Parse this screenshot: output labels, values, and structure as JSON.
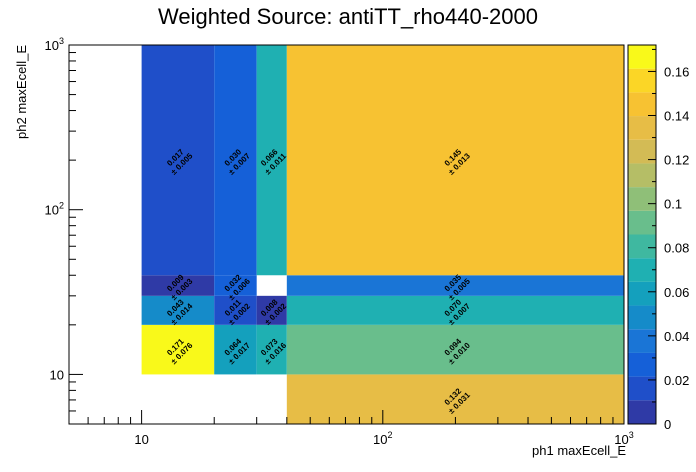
{
  "chart_data": {
    "type": "heatmap",
    "title": "Weighted Source: antiTT_rho440-2000",
    "xlabel": "ph1 maxEcell_E",
    "ylabel": "ph2 maxEcell_E",
    "x_scale": "log",
    "y_scale": "log",
    "xlim": [
      5,
      1000
    ],
    "ylim": [
      5,
      1000
    ],
    "x_edges": [
      10,
      20,
      30,
      40,
      1000
    ],
    "y_edges": [
      5,
      10,
      20,
      30,
      40,
      1000
    ],
    "x_ticks": [
      {
        "value": 10,
        "label": "10"
      },
      {
        "value": 100,
        "label": "10^2"
      },
      {
        "value": 1000,
        "label": "10^3"
      }
    ],
    "y_ticks": [
      {
        "value": 10,
        "label": "10"
      },
      {
        "value": 100,
        "label": "10^2"
      },
      {
        "value": 1000,
        "label": "10^3"
      }
    ],
    "z_range": [
      0,
      0.172
    ],
    "colorbar_ticks": [
      "0",
      "0.02",
      "0.04",
      "0.06",
      "0.08",
      "0.1",
      "0.12",
      "0.14",
      "0.16"
    ],
    "colorbar_tick_values": [
      0,
      0.02,
      0.04,
      0.06,
      0.08,
      0.1,
      0.12,
      0.14,
      0.16
    ],
    "grid": false,
    "cells": [
      {
        "xbin": 3,
        "ybin": 0,
        "value": 0.132,
        "value_label": "0.132",
        "error_label": "± 0.031"
      },
      {
        "xbin": 0,
        "ybin": 1,
        "value": 0.171,
        "value_label": "0.171",
        "error_label": "± 0.076"
      },
      {
        "xbin": 1,
        "ybin": 1,
        "value": 0.064,
        "value_label": "0.064",
        "error_label": "± 0.017"
      },
      {
        "xbin": 2,
        "ybin": 1,
        "value": 0.073,
        "value_label": "0.073",
        "error_label": "± 0.016"
      },
      {
        "xbin": 3,
        "ybin": 1,
        "value": 0.094,
        "value_label": "0.094",
        "error_label": "± 0.010"
      },
      {
        "xbin": 0,
        "ybin": 2,
        "value": 0.043,
        "value_label": "0.043",
        "error_label": "± 0.014"
      },
      {
        "xbin": 1,
        "ybin": 2,
        "value": 0.011,
        "value_label": "0.011",
        "error_label": "± 0.002"
      },
      {
        "xbin": 2,
        "ybin": 2,
        "value": 0.008,
        "value_label": "0.008",
        "error_label": "± 0.002"
      },
      {
        "xbin": 3,
        "ybin": 2,
        "value": 0.07,
        "value_label": "0.070",
        "error_label": "± 0.007"
      },
      {
        "xbin": 0,
        "ybin": 3,
        "value": 0.009,
        "value_label": "0.009",
        "error_label": "± 0.003"
      },
      {
        "xbin": 1,
        "ybin": 3,
        "value": 0.032,
        "value_label": "0.032",
        "error_label": "± 0.006"
      },
      {
        "xbin": 3,
        "ybin": 3,
        "value": 0.035,
        "value_label": "0.035",
        "error_label": "± 0.005"
      },
      {
        "xbin": 0,
        "ybin": 4,
        "value": 0.017,
        "value_label": "0.017",
        "error_label": "± 0.005"
      },
      {
        "xbin": 1,
        "ybin": 4,
        "value": 0.03,
        "value_label": "0.030",
        "error_label": "± 0.007"
      },
      {
        "xbin": 2,
        "ybin": 4,
        "value": 0.066,
        "value_label": "0.066",
        "error_label": "± 0.011"
      },
      {
        "xbin": 3,
        "ybin": 4,
        "value": 0.145,
        "value_label": "0.145",
        "error_label": "± 0.013"
      }
    ],
    "palette": [
      "#2f3aa6",
      "#1f4fc9",
      "#1560d8",
      "#1a75d6",
      "#158bc9",
      "#14a0bd",
      "#1fb0b2",
      "#3fb8a0",
      "#69be8c",
      "#8fbf78",
      "#b5be66",
      "#d3bb55",
      "#e7bd46",
      "#f7c232",
      "#fbd626",
      "#f9f91a"
    ]
  }
}
